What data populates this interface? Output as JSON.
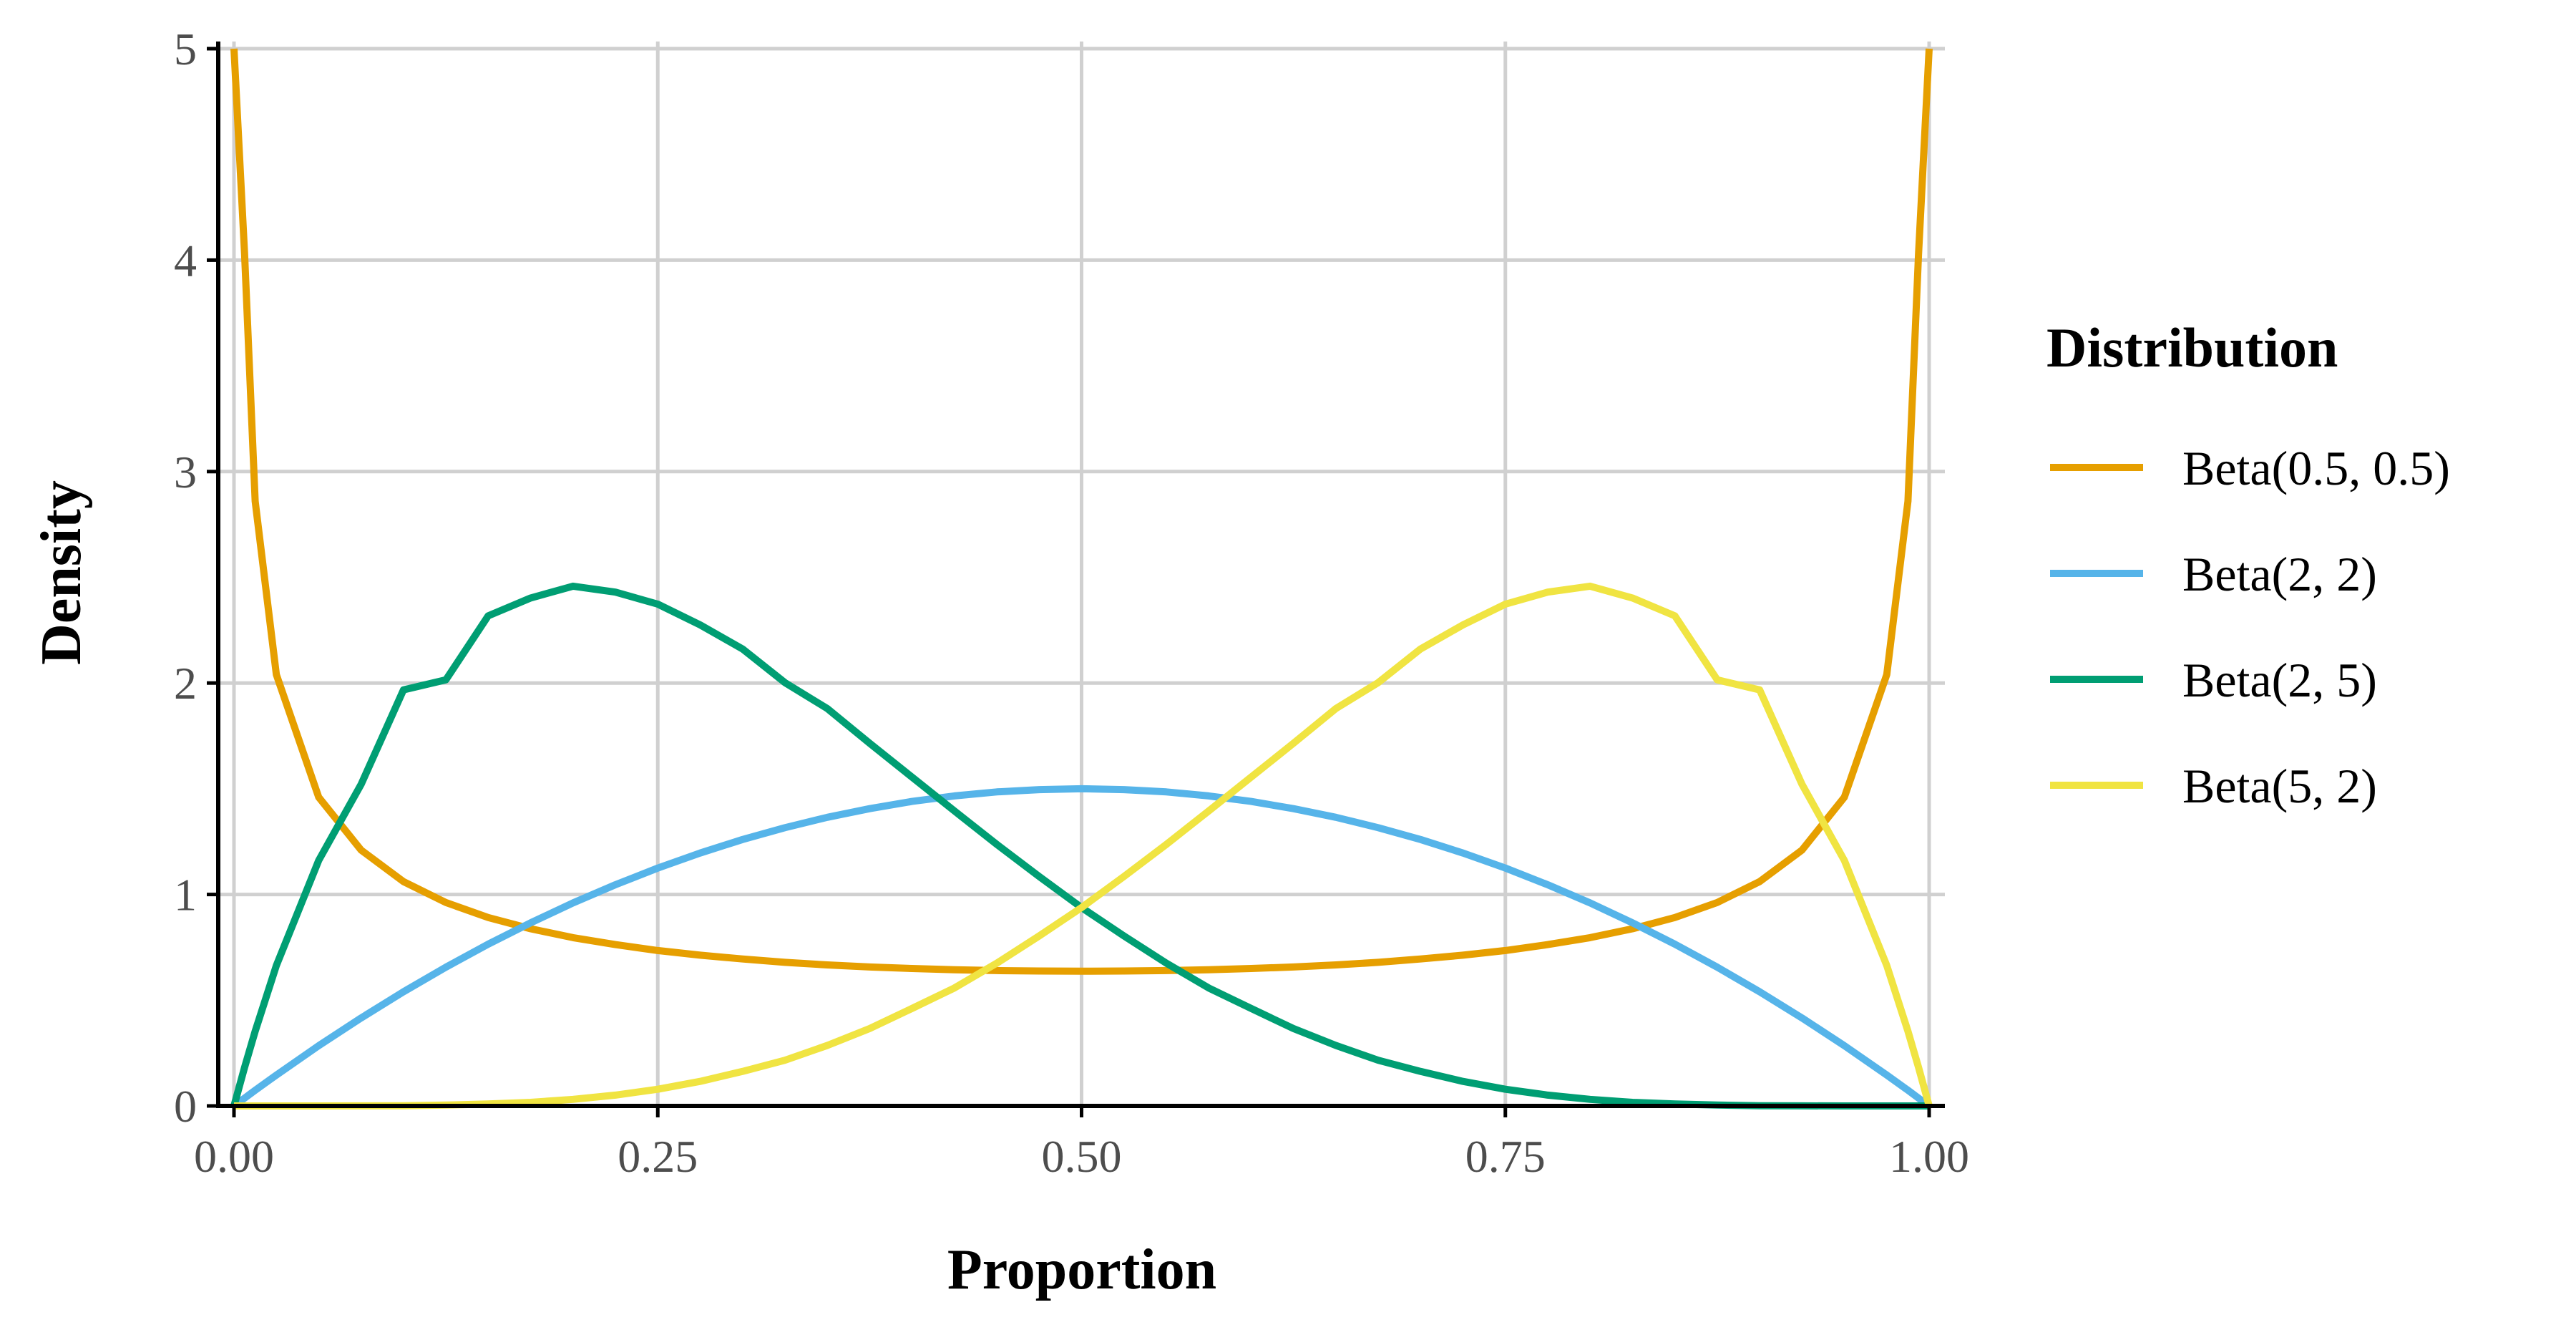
{
  "chart_data": {
    "type": "line",
    "title": "",
    "xlabel": "Proportion",
    "ylabel": "Density",
    "xlim": [
      0,
      1
    ],
    "ylim": [
      0,
      5
    ],
    "grid": true,
    "x_ticks": [
      0,
      0.25,
      0.5,
      0.75,
      1
    ],
    "x_tick_labels": [
      "0.00",
      "0.25",
      "0.50",
      "0.75",
      "1.00"
    ],
    "y_ticks": [
      0,
      1,
      2,
      3,
      4,
      5
    ],
    "y_tick_labels": [
      "0",
      "1",
      "2",
      "3",
      "4",
      "5"
    ],
    "legend": {
      "title": "Distribution",
      "position": "right"
    },
    "x": [
      0,
      0.00625,
      0.0125,
      0.025,
      0.05,
      0.075,
      0.1,
      0.125,
      0.15,
      0.175,
      0.2,
      0.225,
      0.25,
      0.275,
      0.3,
      0.325,
      0.35,
      0.375,
      0.4,
      0.425,
      0.45,
      0.475,
      0.5,
      0.525,
      0.55,
      0.575,
      0.6,
      0.625,
      0.65,
      0.675,
      0.7,
      0.725,
      0.75,
      0.775,
      0.8,
      0.825,
      0.85,
      0.875,
      0.9,
      0.925,
      0.95,
      0.975,
      0.9875,
      0.99375,
      1
    ],
    "series": [
      {
        "name": "Beta(0.5, 0.5)",
        "color": "#E69F00",
        "values": [
          5.0,
          4.03,
          2.86,
          2.04,
          1.46,
          1.21,
          1.061,
          0.962,
          0.891,
          0.838,
          0.796,
          0.763,
          0.735,
          0.713,
          0.695,
          0.679,
          0.667,
          0.657,
          0.65,
          0.644,
          0.64,
          0.638,
          0.637,
          0.638,
          0.64,
          0.644,
          0.65,
          0.657,
          0.667,
          0.679,
          0.695,
          0.713,
          0.735,
          0.763,
          0.796,
          0.838,
          0.891,
          0.962,
          1.061,
          1.21,
          1.46,
          2.04,
          2.86,
          4.03,
          5.0
        ]
      },
      {
        "name": "Beta(2, 2)",
        "color": "#56B4E9",
        "values": [
          0,
          0.037,
          0.074,
          0.146,
          0.285,
          0.416,
          0.54,
          0.656,
          0.765,
          0.866,
          0.96,
          1.046,
          1.125,
          1.196,
          1.26,
          1.316,
          1.365,
          1.406,
          1.44,
          1.466,
          1.485,
          1.496,
          1.5,
          1.496,
          1.485,
          1.466,
          1.44,
          1.406,
          1.365,
          1.316,
          1.26,
          1.196,
          1.125,
          1.046,
          0.96,
          0.866,
          0.765,
          0.656,
          0.54,
          0.416,
          0.285,
          0.146,
          0.074,
          0.037,
          0
        ]
      },
      {
        "name": "Beta(2, 5)",
        "color": "#009E73",
        "values": [
          0,
          0.182,
          0.353,
          0.664,
          1.161,
          1.521,
          1.968,
          2.015,
          2.318,
          2.402,
          2.458,
          2.43,
          2.373,
          2.275,
          2.161,
          2.002,
          1.879,
          1.715,
          1.555,
          1.395,
          1.237,
          1.085,
          0.938,
          0.804,
          0.675,
          0.558,
          0.461,
          0.366,
          0.286,
          0.216,
          0.163,
          0.116,
          0.079,
          0.051,
          0.031,
          0.017,
          0.009,
          0.004,
          0.001,
          0.0002,
          0,
          0,
          0,
          0,
          0
        ]
      },
      {
        "name": "Beta(5, 2)",
        "color": "#F0E442",
        "values": [
          0,
          0,
          0,
          0,
          0,
          0.0002,
          0.001,
          0.004,
          0.009,
          0.017,
          0.031,
          0.051,
          0.079,
          0.116,
          0.163,
          0.216,
          0.286,
          0.366,
          0.461,
          0.558,
          0.675,
          0.804,
          0.938,
          1.085,
          1.237,
          1.395,
          1.555,
          1.715,
          1.879,
          2.002,
          2.161,
          2.275,
          2.373,
          2.43,
          2.458,
          2.402,
          2.318,
          2.015,
          1.968,
          1.521,
          1.161,
          0.664,
          0.353,
          0.182,
          0
        ]
      }
    ]
  }
}
